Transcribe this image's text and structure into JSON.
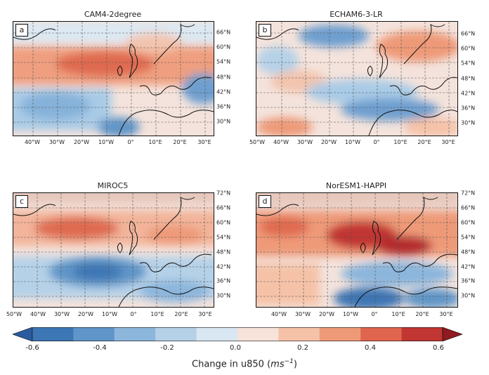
{
  "panels": [
    {
      "id": "a",
      "title": "CAM4-2degree",
      "xticks": [
        "40°W",
        "30°W",
        "20°W",
        "10°W",
        "0°",
        "10°E",
        "20°E",
        "30°E"
      ],
      "yticks": [
        "66°N",
        "60°N",
        "54°N",
        "48°N",
        "42°N",
        "36°N",
        "30°N"
      ]
    },
    {
      "id": "b",
      "title": "ECHAM6-3-LR",
      "xticks": [
        "50°W",
        "40°W",
        "30°W",
        "20°W",
        "10°W",
        "0°",
        "10°E",
        "20°E",
        "30°E"
      ],
      "yticks": [
        "66°N",
        "60°N",
        "54°N",
        "48°N",
        "42°N",
        "36°N",
        "30°N"
      ]
    },
    {
      "id": "c",
      "title": "MIROC5",
      "xticks": [
        "50°W",
        "40°W",
        "30°W",
        "20°W",
        "10°W",
        "0°",
        "10°E",
        "20°E",
        "30°E"
      ],
      "yticks": [
        "72°N",
        "66°N",
        "60°N",
        "54°N",
        "48°N",
        "42°N",
        "36°N",
        "30°N"
      ]
    },
    {
      "id": "d",
      "title": "NorESM1-HAPPI",
      "xticks": [
        "40°W",
        "30°W",
        "20°W",
        "10°W",
        "0°",
        "10°E",
        "20°E",
        "30°E"
      ],
      "yticks": [
        "72°N",
        "66°N",
        "60°N",
        "54°N",
        "48°N",
        "42°N",
        "36°N",
        "30°N"
      ]
    }
  ],
  "colorbar": {
    "ticks": [
      "-0.6",
      "-0.4",
      "-0.2",
      "0.0",
      "0.2",
      "0.4",
      "0.6"
    ],
    "label_prefix": "Change in u850 (",
    "label_unit": "ms",
    "label_exp": "−1",
    "label_suffix": ")",
    "colors": [
      "#2a5b9e",
      "#3d76b4",
      "#5f95c8",
      "#8cb6dc",
      "#b5d1e8",
      "#d9e7f2",
      "#f7e3da",
      "#f5c2a8",
      "#ee9a78",
      "#e0654e",
      "#c13632",
      "#8f1a22"
    ]
  }
}
